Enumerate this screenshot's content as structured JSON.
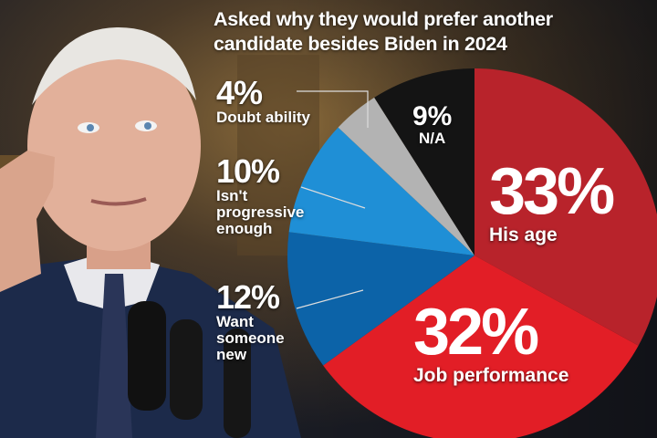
{
  "chart_data": {
    "type": "pie",
    "title": "Asked why they would prefer another candidate besides Biden in 2024",
    "slices": [
      {
        "label": "His age",
        "value": 33,
        "display": "33%",
        "color": "#b8232b"
      },
      {
        "label": "Job performance",
        "value": 32,
        "display": "32%",
        "color": "#e21e26"
      },
      {
        "label": "Want someone new",
        "value": 12,
        "display": "12%",
        "color": "#0c63a8"
      },
      {
        "label": "Isn't progressive enough",
        "value": 10,
        "display": "10%",
        "color": "#1f8fd6"
      },
      {
        "label": "Doubt ability",
        "value": 4,
        "display": "4%",
        "color": "#b3b3b3"
      },
      {
        "label": "N/A",
        "value": 9,
        "display": "9%",
        "color": "#141414"
      }
    ]
  },
  "labels": {
    "title_line1": "Asked why they would prefer another",
    "title_line2": "candidate besides Biden in 2024",
    "age": {
      "value": "33%",
      "caption": "His age"
    },
    "job": {
      "value": "32%",
      "caption": "Job performance"
    },
    "new": {
      "value": "12%",
      "caption_lines": [
        "Want",
        "someone",
        "new"
      ]
    },
    "progressive": {
      "value": "10%",
      "caption_lines": [
        "Isn't",
        "progressive",
        "enough"
      ]
    },
    "doubt": {
      "value": "4%",
      "caption": "Doubt ability"
    },
    "na": {
      "value": "9%",
      "caption": "N/A"
    }
  }
}
